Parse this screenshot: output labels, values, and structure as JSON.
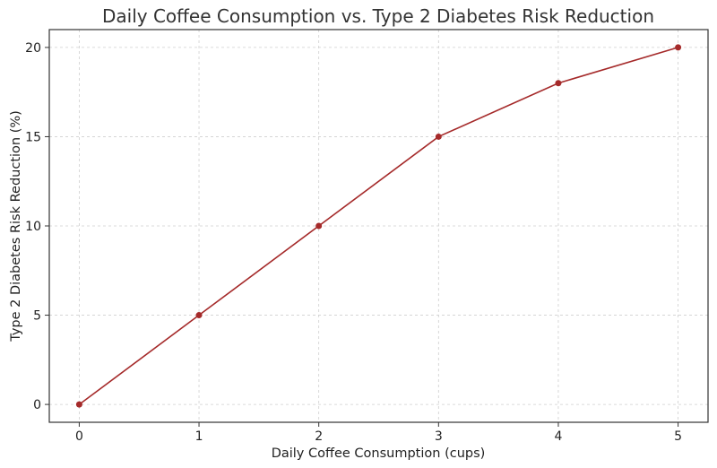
{
  "chart_data": {
    "type": "line",
    "title": "Daily Coffee Consumption vs. Type 2 Diabetes Risk Reduction",
    "xlabel": "Daily Coffee Consumption (cups)",
    "ylabel": "Type 2 Diabetes Risk Reduction (%)",
    "x": [
      0,
      1,
      2,
      3,
      4,
      5
    ],
    "series": [
      {
        "values": [
          0,
          5,
          10,
          15,
          18,
          20
        ],
        "color": "#a52a2a",
        "marker": "circle"
      }
    ],
    "xlim": [
      -0.25,
      5.25
    ],
    "ylim": [
      -1,
      21
    ],
    "xticks": [
      "0",
      "1",
      "2",
      "3",
      "4",
      "5"
    ],
    "yticks": [
      "0",
      "5",
      "10",
      "15",
      "20"
    ],
    "grid": true,
    "legend": "none"
  }
}
